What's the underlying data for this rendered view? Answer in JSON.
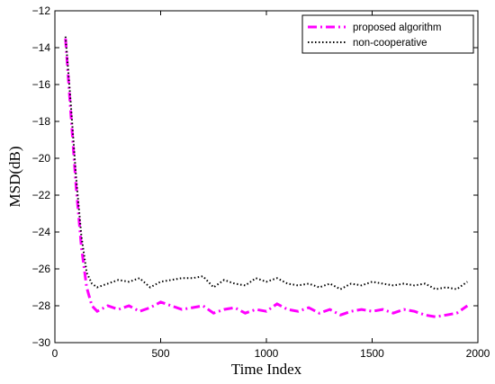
{
  "chart_data": {
    "type": "line",
    "xlabel": "Time Index",
    "ylabel": "MSD(dB)",
    "xlim": [
      0,
      2000
    ],
    "ylim": [
      -30,
      -12
    ],
    "x_ticks": [
      0,
      500,
      1000,
      1500,
      2000
    ],
    "y_ticks": [
      -30,
      -28,
      -26,
      -24,
      -22,
      -20,
      -18,
      -16,
      -14,
      -12
    ],
    "grid": false,
    "legend_position": "top-right",
    "series": [
      {
        "name": "proposed algorithm",
        "color": "#ff00ff",
        "style": "dash-dot",
        "x": [
          50,
          75,
          100,
          125,
          150,
          175,
          200,
          250,
          300,
          350,
          400,
          450,
          500,
          550,
          600,
          650,
          700,
          750,
          800,
          850,
          900,
          950,
          1000,
          1050,
          1100,
          1150,
          1200,
          1250,
          1300,
          1350,
          1400,
          1450,
          1500,
          1550,
          1600,
          1650,
          1700,
          1750,
          1800,
          1850,
          1900,
          1950
        ],
        "y": [
          -13.5,
          -17.5,
          -21.5,
          -24.8,
          -27.0,
          -28.0,
          -28.3,
          -28.0,
          -28.2,
          -28.0,
          -28.3,
          -28.1,
          -27.8,
          -28.0,
          -28.2,
          -28.1,
          -28.0,
          -28.4,
          -28.2,
          -28.1,
          -28.4,
          -28.2,
          -28.3,
          -27.9,
          -28.2,
          -28.3,
          -28.1,
          -28.4,
          -28.2,
          -28.5,
          -28.3,
          -28.2,
          -28.3,
          -28.2,
          -28.4,
          -28.2,
          -28.3,
          -28.5,
          -28.6,
          -28.5,
          -28.4,
          -28.0
        ]
      },
      {
        "name": "non-cooperative",
        "color": "#000000",
        "style": "dotted",
        "x": [
          50,
          75,
          100,
          125,
          150,
          175,
          200,
          250,
          300,
          350,
          400,
          450,
          500,
          550,
          600,
          650,
          700,
          750,
          800,
          850,
          900,
          950,
          1000,
          1050,
          1100,
          1150,
          1200,
          1250,
          1300,
          1350,
          1400,
          1450,
          1500,
          1550,
          1600,
          1650,
          1700,
          1750,
          1800,
          1850,
          1900,
          1950
        ],
        "y": [
          -13.4,
          -17.0,
          -21.0,
          -24.2,
          -26.2,
          -26.8,
          -27.0,
          -26.8,
          -26.6,
          -26.7,
          -26.5,
          -27.0,
          -26.7,
          -26.6,
          -26.5,
          -26.5,
          -26.4,
          -27.0,
          -26.6,
          -26.8,
          -26.9,
          -26.5,
          -26.7,
          -26.5,
          -26.8,
          -26.9,
          -26.8,
          -27.0,
          -26.8,
          -27.1,
          -26.8,
          -26.9,
          -26.7,
          -26.8,
          -26.9,
          -26.8,
          -26.9,
          -26.8,
          -27.1,
          -27.0,
          -27.1,
          -26.7
        ]
      }
    ]
  }
}
